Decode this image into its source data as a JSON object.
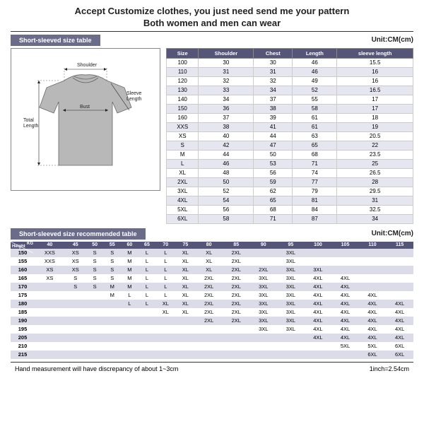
{
  "header": {
    "line1": "Accept Customize clothes, you just need send me your pattern",
    "line2": "Both women and men can wear"
  },
  "banners": {
    "sizeTable": "Short-sleeved size table",
    "recTable": "Short-sleeved size recommended table"
  },
  "unit": "Unit:CM(cm)",
  "diagram": {
    "shoulder": "Shoulder",
    "bust": "Bust",
    "sleeve": "Sleeve\nLength",
    "total": "Total\nLength"
  },
  "sizeTable": {
    "columns": [
      "Size",
      "Shoulder",
      "Chest",
      "Length",
      "sleeve length"
    ],
    "rows": [
      [
        "100",
        "30",
        "30",
        "46",
        "15.5"
      ],
      [
        "110",
        "31",
        "31",
        "46",
        "16"
      ],
      [
        "120",
        "32",
        "32",
        "49",
        "16"
      ],
      [
        "130",
        "33",
        "34",
        "52",
        "16.5"
      ],
      [
        "140",
        "34",
        "37",
        "55",
        "17"
      ],
      [
        "150",
        "36",
        "38",
        "58",
        "17"
      ],
      [
        "160",
        "37",
        "39",
        "61",
        "18"
      ],
      [
        "XXS",
        "38",
        "41",
        "61",
        "19"
      ],
      [
        "XS",
        "40",
        "44",
        "63",
        "20.5"
      ],
      [
        "S",
        "42",
        "47",
        "65",
        "22"
      ],
      [
        "M",
        "44",
        "50",
        "68",
        "23.5"
      ],
      [
        "L",
        "46",
        "53",
        "71",
        "25"
      ],
      [
        "XL",
        "48",
        "56",
        "74",
        "26.5"
      ],
      [
        "2XL",
        "50",
        "59",
        "77",
        "28"
      ],
      [
        "3XL",
        "52",
        "62",
        "79",
        "29.5"
      ],
      [
        "4XL",
        "54",
        "65",
        "81",
        "31"
      ],
      [
        "5XL",
        "56",
        "68",
        "84",
        "32.5"
      ],
      [
        "6XL",
        "58",
        "71",
        "87",
        "34"
      ]
    ]
  },
  "recTable": {
    "cornerTop": "KG",
    "cornerBottom": "Height",
    "weights": [
      "40",
      "45",
      "50",
      "55",
      "60",
      "65",
      "70",
      "75",
      "80",
      "85",
      "90",
      "95",
      "100",
      "105",
      "110",
      "115"
    ],
    "rows": [
      {
        "h": "150",
        "v": [
          "XXS",
          "XS",
          "S",
          "S",
          "M",
          "L",
          "L",
          "XL",
          "XL",
          "2XL",
          "",
          "3XL",
          "",
          "",
          "",
          ""
        ]
      },
      {
        "h": "155",
        "v": [
          "XXS",
          "XS",
          "S",
          "S",
          "M",
          "L",
          "L",
          "XL",
          "XL",
          "2XL",
          "",
          "3XL",
          "",
          "",
          "",
          ""
        ]
      },
      {
        "h": "160",
        "v": [
          "XS",
          "XS",
          "S",
          "S",
          "M",
          "L",
          "L",
          "XL",
          "XL",
          "2XL",
          "2XL",
          "3XL",
          "3XL",
          "",
          "",
          ""
        ]
      },
      {
        "h": "165",
        "v": [
          "XS",
          "S",
          "S",
          "S",
          "M",
          "L",
          "L",
          "XL",
          "2XL",
          "2XL",
          "3XL",
          "3XL",
          "4XL",
          "4XL",
          "",
          ""
        ]
      },
      {
        "h": "170",
        "v": [
          "",
          "S",
          "S",
          "M",
          "M",
          "L",
          "L",
          "XL",
          "2XL",
          "2XL",
          "3XL",
          "3XL",
          "4XL",
          "4XL",
          "",
          ""
        ]
      },
      {
        "h": "175",
        "v": [
          "",
          "",
          "",
          "M",
          "L",
          "L",
          "L",
          "XL",
          "2XL",
          "2XL",
          "3XL",
          "3XL",
          "4XL",
          "4XL",
          "4XL",
          ""
        ]
      },
      {
        "h": "180",
        "v": [
          "",
          "",
          "",
          "",
          "L",
          "L",
          "XL",
          "XL",
          "2XL",
          "2XL",
          "3XL",
          "3XL",
          "4XL",
          "4XL",
          "4XL",
          "4XL"
        ]
      },
      {
        "h": "185",
        "v": [
          "",
          "",
          "",
          "",
          "",
          "",
          "XL",
          "XL",
          "2XL",
          "2XL",
          "3XL",
          "3XL",
          "4XL",
          "4XL",
          "4XL",
          "4XL"
        ]
      },
      {
        "h": "190",
        "v": [
          "",
          "",
          "",
          "",
          "",
          "",
          "",
          "",
          "2XL",
          "2XL",
          "3XL",
          "3XL",
          "4XL",
          "4XL",
          "4XL",
          "4XL"
        ]
      },
      {
        "h": "195",
        "v": [
          "",
          "",
          "",
          "",
          "",
          "",
          "",
          "",
          "",
          "",
          "3XL",
          "3XL",
          "4XL",
          "4XL",
          "4XL",
          "4XL"
        ]
      },
      {
        "h": "205",
        "v": [
          "",
          "",
          "",
          "",
          "",
          "",
          "",
          "",
          "",
          "",
          "",
          "",
          "4XL",
          "4XL",
          "4XL",
          "4XL"
        ]
      },
      {
        "h": "210",
        "v": [
          "",
          "",
          "",
          "",
          "",
          "",
          "",
          "",
          "",
          "",
          "",
          "",
          "",
          "5XL",
          "5XL",
          "6XL"
        ]
      },
      {
        "h": "215",
        "v": [
          "",
          "",
          "",
          "",
          "",
          "",
          "",
          "",
          "",
          "",
          "",
          "",
          "",
          "",
          "6XL",
          "6XL"
        ]
      }
    ]
  },
  "footer": {
    "left": "Hand measurement will have discrepancy of about 1~3cm",
    "right": "1inch=2.54cm"
  },
  "colors": {
    "bannerBg": "#6b6b8a",
    "headerBg": "#55557a",
    "altRow": "#e6e6f0",
    "recAlt": "#dcdce8"
  }
}
